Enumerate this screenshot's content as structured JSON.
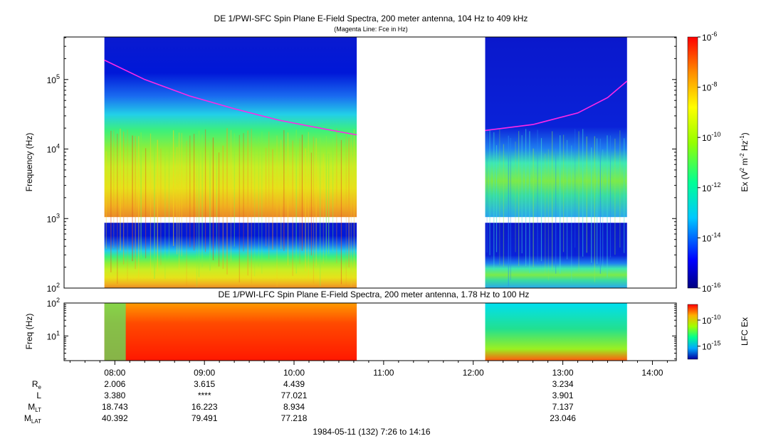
{
  "chart_data": [
    {
      "type": "heatmap",
      "title": "DE 1/PWI-SFC  Spin Plane E-Field Spectra, 200 meter antenna, 104 Hz to 409 kHz",
      "subtitle": "(Magenta Line: Fce in Hz)",
      "ylabel": "Frequency (Hz)",
      "yscale": "log",
      "ylim": [
        100,
        409000
      ],
      "yticks": [
        {
          "value": 100,
          "base": "10",
          "exp": "2"
        },
        {
          "value": 1000,
          "base": "10",
          "exp": "3"
        },
        {
          "value": 10000,
          "base": "10",
          "exp": "4"
        },
        {
          "value": 100000,
          "base": "10",
          "exp": "5"
        }
      ],
      "xlim": [
        "07:26",
        "14:16"
      ],
      "data_intervals": [
        [
          "07:53",
          "10:42"
        ],
        [
          "12:08",
          "13:43"
        ]
      ],
      "band_gap_hz": [
        870,
        1050
      ],
      "fce_line": [
        {
          "t": "07:53",
          "f": 190000
        },
        {
          "t": "08:20",
          "f": 100000
        },
        {
          "t": "08:50",
          "f": 58000
        },
        {
          "t": "09:20",
          "f": 38000
        },
        {
          "t": "09:50",
          "f": 26000
        },
        {
          "t": "10:20",
          "f": 19500
        },
        {
          "t": "10:42",
          "f": 16000
        },
        {
          "t": "12:08",
          "f": 18500
        },
        {
          "t": "12:40",
          "f": 22500
        },
        {
          "t": "13:10",
          "f": 33000
        },
        {
          "t": "13:30",
          "f": 55000
        },
        {
          "t": "13:43",
          "f": 95000
        }
      ],
      "colorbar": {
        "label": {
          "pre": "Ex (V",
          "sup1": "2",
          "mid": " m",
          "sup2": "-2",
          "mid2": " Hz",
          "sup3": "-1",
          "post": ")"
        },
        "log_range": [
          -16,
          -6
        ],
        "ticks": [
          {
            "value": -6,
            "base": "10",
            "exp": "-6"
          },
          {
            "value": -8,
            "base": "10",
            "exp": "-8"
          },
          {
            "value": -10,
            "base": "10",
            "exp": "-10"
          },
          {
            "value": -12,
            "base": "10",
            "exp": "-12"
          },
          {
            "value": -14,
            "base": "10",
            "exp": "-14"
          },
          {
            "value": -16,
            "base": "10",
            "exp": "-16"
          }
        ]
      }
    },
    {
      "type": "heatmap",
      "title": "DE 1/PWI-LFC  Spin Plane E-Field Spectra, 200 meter antenna, 1.78 Hz to 100 Hz",
      "ylabel": "Freq (Hz)",
      "yscale": "log",
      "ylim": [
        1.78,
        100
      ],
      "yticks": [
        {
          "value": 10,
          "base": "10",
          "exp": "1"
        },
        {
          "value": 100,
          "base": "10",
          "exp": "2"
        }
      ],
      "xlim": [
        "07:26",
        "14:16"
      ],
      "xticks": [
        "08:00",
        "09:00",
        "10:00",
        "11:00",
        "12:00",
        "13:00",
        "14:00"
      ],
      "data_intervals": [
        [
          "07:53",
          "10:42"
        ],
        [
          "12:08",
          "13:43"
        ]
      ],
      "colorbar": {
        "label": "LFC Ex",
        "log_range": [
          -17.5,
          -7
        ],
        "ticks": [
          {
            "value": -10,
            "base": "10",
            "exp": "-10"
          },
          {
            "value": -15,
            "base": "10",
            "exp": "-15"
          }
        ]
      }
    }
  ],
  "ephemeris": {
    "rows": [
      {
        "label": "R",
        "sub": "e",
        "values": [
          "2.006",
          "3.615",
          "4.439",
          "",
          "",
          "3.234",
          ""
        ]
      },
      {
        "label": "L",
        "sub": "",
        "values": [
          "3.380",
          "****",
          "77.021",
          "",
          "",
          "3.901",
          ""
        ]
      },
      {
        "label": "M",
        "sub": "LT",
        "values": [
          "18.743",
          "16.223",
          "8.934",
          "",
          "",
          "7.137",
          ""
        ]
      },
      {
        "label": "M",
        "sub": "LAT",
        "values": [
          "40.392",
          "79.491",
          "77.218",
          "",
          "",
          "23.046",
          ""
        ]
      }
    ]
  },
  "footer": "1984-05-11 (132) 7:26 to 14:16"
}
